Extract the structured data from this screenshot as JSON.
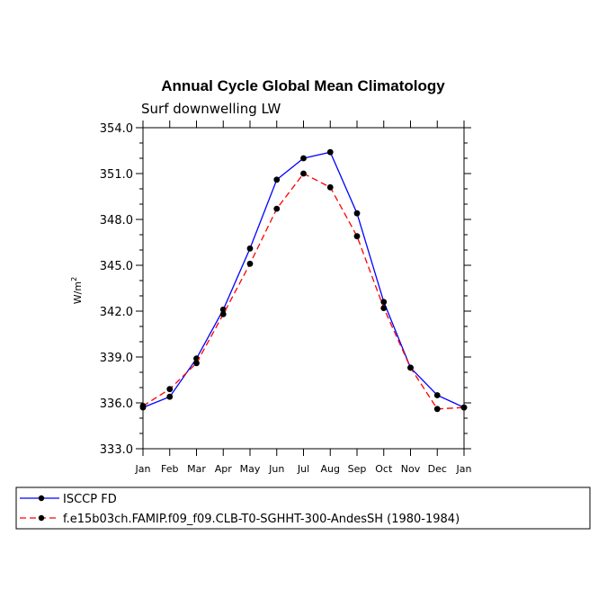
{
  "chart_data": {
    "type": "line",
    "title": "Annual Cycle Global Mean Climatology",
    "subtitle": "Surf downwelling LW",
    "ylabel": "W/m",
    "ylabel_sup": "2",
    "xlabel": "",
    "categories": [
      "Jan",
      "Feb",
      "Mar",
      "Apr",
      "May",
      "Jun",
      "Jul",
      "Aug",
      "Sep",
      "Oct",
      "Nov",
      "Dec",
      "Jan"
    ],
    "ylim": [
      333.0,
      354.0
    ],
    "yticks": [
      "333.0",
      "336.0",
      "339.0",
      "342.0",
      "345.0",
      "348.0",
      "351.0",
      "354.0"
    ],
    "grid": false,
    "legend_position": "bottom-left, below plot",
    "series": [
      {
        "name": "ISCCP FD",
        "color": "#0000ff",
        "dash": "solid",
        "values": [
          335.7,
          336.4,
          338.9,
          342.1,
          346.1,
          350.6,
          352.0,
          352.4,
          348.4,
          342.6,
          338.3,
          336.5,
          335.7
        ]
      },
      {
        "name": "f.e15b03ch.FAMIP.f09_f09.CLB-T0-SGHHT-300-AndesSH (1980-1984)",
        "color": "#ff0000",
        "dash": "dashed",
        "values": [
          335.8,
          336.9,
          338.6,
          341.8,
          345.1,
          348.7,
          351.0,
          350.1,
          346.9,
          342.2,
          338.3,
          335.6,
          335.7
        ]
      }
    ]
  }
}
